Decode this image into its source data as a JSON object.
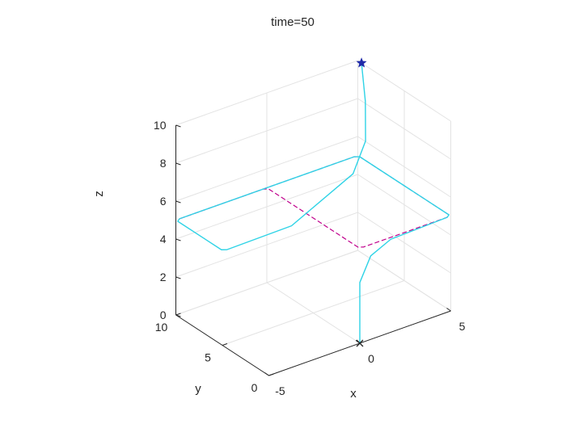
{
  "chart_data": {
    "type": "line3d",
    "title": "time=50",
    "xlabel": "x",
    "ylabel": "y",
    "zlabel": "z",
    "xlim": [
      -5,
      5
    ],
    "ylim": [
      0,
      10
    ],
    "zlim": [
      0,
      10
    ],
    "xticks": [
      -5,
      0,
      5
    ],
    "yticks": [
      0,
      5,
      10
    ],
    "zticks": [
      0,
      2,
      4,
      6,
      8,
      10
    ],
    "grid": true,
    "colors": {
      "reference": "#c0008c",
      "trajectory": "#2fd3e6",
      "marker": "#1f2aa8",
      "axis": "#262626",
      "grid": "#e3e3e3"
    },
    "series": [
      {
        "style": "dashed",
        "points": [
          [
            -4.8,
            10,
            5
          ],
          [
            -0.2,
            10,
            5
          ],
          [
            0,
            9.8,
            5
          ],
          [
            0,
            0.2,
            5
          ],
          [
            0.2,
            0,
            5
          ],
          [
            4.8,
            0,
            5
          ],
          [
            5,
            0.2,
            5
          ],
          [
            5,
            9.8,
            5
          ],
          [
            4.8,
            10,
            5
          ],
          [
            -4.8,
            10,
            5
          ]
        ]
      },
      {
        "style": "solid",
        "points": [
          [
            0,
            0,
            0
          ],
          [
            0,
            0,
            3.2
          ],
          [
            0.6,
            0,
            4.4
          ],
          [
            1.7,
            0,
            4.9
          ],
          [
            4.8,
            0,
            5
          ],
          [
            5,
            0.2,
            5
          ],
          [
            5,
            9.8,
            5
          ],
          [
            4.8,
            10,
            5
          ],
          [
            -4.8,
            10,
            5
          ],
          [
            -5,
            9.8,
            5
          ],
          [
            -5,
            5.1,
            5
          ],
          [
            -4.8,
            4.9,
            5
          ],
          [
            -1.2,
            5,
            5
          ],
          [
            3,
            6.6,
            5.8
          ],
          [
            4.2,
            7.6,
            6.8
          ],
          [
            4.7,
            8.6,
            8.4
          ],
          [
            5,
            9.6,
            10
          ]
        ]
      }
    ],
    "markers": [
      {
        "symbol": "x",
        "point": [
          0,
          0,
          0
        ]
      },
      {
        "symbol": "star",
        "point": [
          5,
          9.6,
          10
        ]
      }
    ]
  }
}
